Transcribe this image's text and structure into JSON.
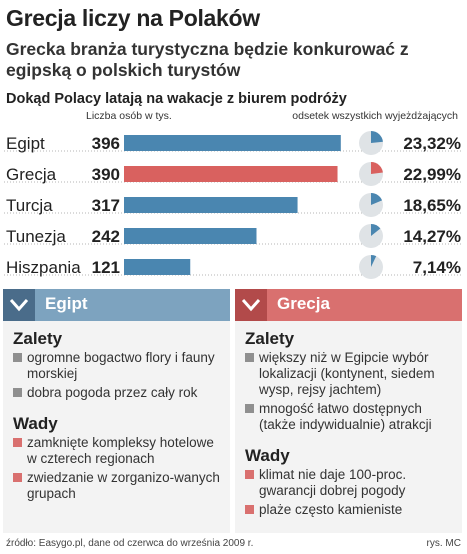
{
  "title": "Grecja liczy na Polaków",
  "subtitle": "Grecka branża turystyczna będzie konkurować z egipską o polskich turystów",
  "chart_data": {
    "type": "bar",
    "title": "Dokąd Polacy latają na wakacje z biurem podróży",
    "value_header": "Liczba osób w tys.",
    "percent_header": "odsetek wszystkich wyjeżdżających",
    "categories": [
      "Egipt",
      "Grecja",
      "Turcja",
      "Tunezja",
      "Hiszpania"
    ],
    "values": [
      396,
      390,
      317,
      242,
      121
    ],
    "value_labels": [
      "396",
      "390",
      "317",
      "242",
      "121"
    ],
    "percents": [
      23.32,
      22.99,
      18.65,
      14.27,
      7.14
    ],
    "percent_labels": [
      "23,32%",
      "22,99%",
      "18,65%",
      "14,27%",
      "7,14%"
    ],
    "highlight_index": 1,
    "xlim": [
      0,
      400
    ],
    "colors": {
      "bar": "#4a86b0",
      "highlight": "#d9615f",
      "pie_bg": "#dfe3e6",
      "pie_fill": "#4a86b0",
      "pie_highlight": "#d9615f"
    }
  },
  "panels": {
    "left": {
      "name": "Egipt",
      "pros_title": "Zalety",
      "pros": [
        "ogromne bogactwo flory i fauny morskiej",
        "dobra pogoda przez cały rok"
      ],
      "cons_title": "Wady",
      "cons": [
        "zamknięte kompleksy hotelowe w czterech regionach",
        "zwiedzanie w zorganizo-wanych grupach"
      ]
    },
    "right": {
      "name": "Grecja",
      "pros_title": "Zalety",
      "pros": [
        "większy niż w Egipcie wybór lokalizacji (kontynent, siedem wysp, rejsy jachtem)",
        "mnogość łatwo dostępnych (także indywidualnie) atrakcji"
      ],
      "cons_title": "Wady",
      "cons": [
        "klimat nie daje 100-proc. gwarancji dobrej pogody",
        "plaże często kamieniste"
      ]
    }
  },
  "footer": {
    "source": "źródło: Easygo.pl, dane od czerwca do września 2009 r.",
    "credit": "rys. MC"
  }
}
